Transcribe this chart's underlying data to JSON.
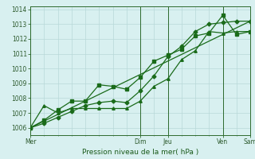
{
  "xlabel": "Pression niveau de la mer( hPa )",
  "background_color": "#d8f0f0",
  "grid_color": "#b8d8d8",
  "line_color": "#1a6b1a",
  "spine_color": "#2d6a2d",
  "ylim": [
    1005.5,
    1014.2
  ],
  "xlim": [
    0,
    96
  ],
  "yticks": [
    1006,
    1007,
    1008,
    1009,
    1010,
    1011,
    1012,
    1013,
    1014
  ],
  "day_ticks": [
    0,
    48,
    60,
    84,
    96
  ],
  "day_labels": [
    "Mer",
    "Dim",
    "Jeu",
    "Ven",
    "Sam"
  ],
  "minor_xtick_interval": 6,
  "line1_x": [
    0,
    6,
    12,
    18,
    24,
    30,
    36,
    42,
    48,
    54,
    60,
    66,
    72,
    78,
    84,
    90,
    96
  ],
  "line1_y": [
    1006.0,
    1006.3,
    1006.7,
    1007.1,
    1007.5,
    1007.7,
    1007.8,
    1007.7,
    1008.5,
    1009.5,
    1010.8,
    1011.5,
    1012.5,
    1013.0,
    1013.1,
    1013.2,
    1013.2
  ],
  "line2_x": [
    0,
    6,
    12,
    18,
    24,
    30,
    36,
    42,
    48,
    54,
    60,
    66,
    72,
    78,
    84,
    90,
    96
  ],
  "line2_y": [
    1006.0,
    1007.5,
    1007.0,
    1007.3,
    1007.3,
    1007.3,
    1007.3,
    1007.3,
    1007.8,
    1008.8,
    1009.3,
    1010.6,
    1011.2,
    1012.5,
    1012.4,
    1012.5,
    1012.5
  ],
  "line3_x": [
    0,
    6,
    12,
    18,
    24,
    30,
    36,
    42,
    48,
    54,
    60,
    66,
    72,
    78,
    84,
    90,
    96
  ],
  "line3_y": [
    1006.0,
    1006.5,
    1007.2,
    1007.8,
    1007.8,
    1008.9,
    1008.8,
    1008.6,
    1009.4,
    1010.5,
    1010.9,
    1011.3,
    1012.2,
    1012.4,
    1013.6,
    1012.3,
    1012.5
  ],
  "line4_x": [
    0,
    96
  ],
  "line4_y": [
    1006.0,
    1013.2
  ],
  "vline_positions": [
    0,
    48,
    60,
    84,
    96
  ]
}
